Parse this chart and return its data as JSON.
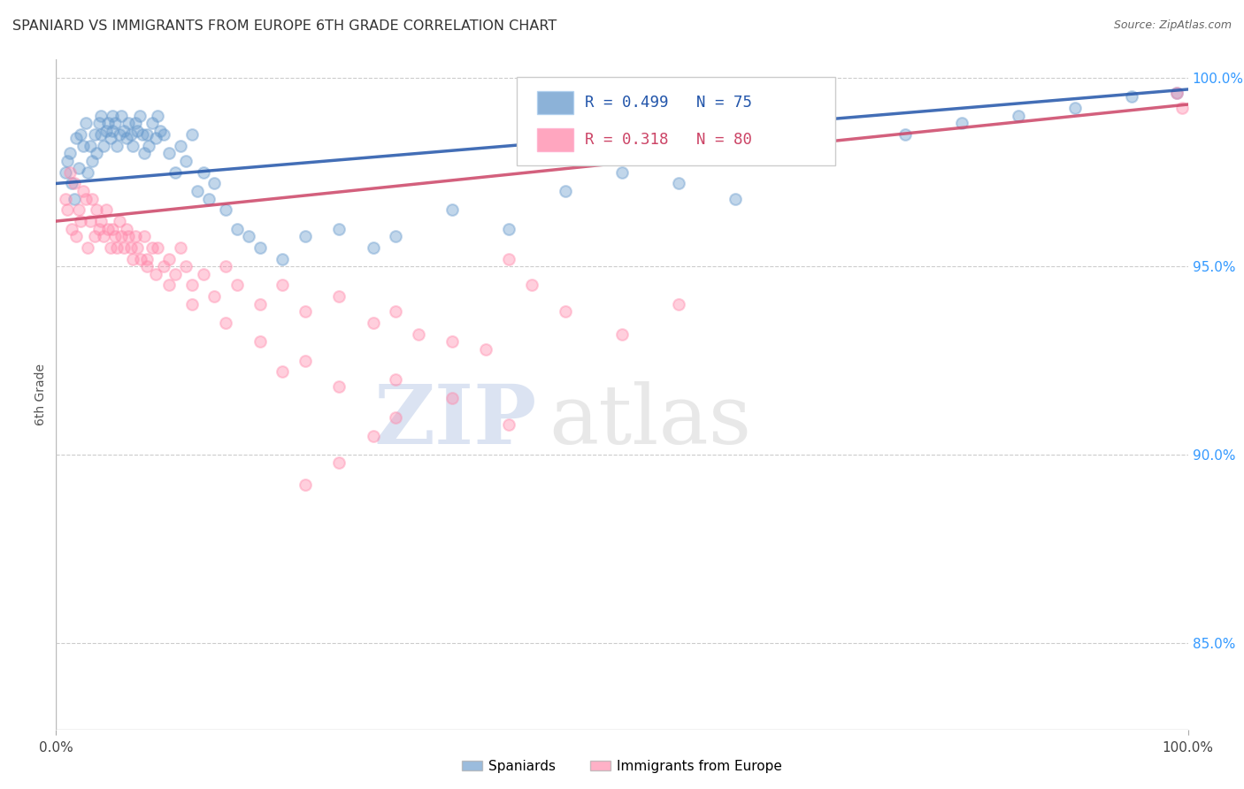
{
  "title": "SPANIARD VS IMMIGRANTS FROM EUROPE 6TH GRADE CORRELATION CHART",
  "source": "Source: ZipAtlas.com",
  "ylabel": "6th Grade",
  "xlim": [
    0.0,
    1.0
  ],
  "ylim": [
    0.827,
    1.005
  ],
  "x_tick_labels": [
    "0.0%",
    "100.0%"
  ],
  "y_tick_labels": [
    "85.0%",
    "90.0%",
    "95.0%",
    "100.0%"
  ],
  "y_tick_values": [
    0.85,
    0.9,
    0.95,
    1.0
  ],
  "legend_blue_label": "Spaniards",
  "legend_pink_label": "Immigrants from Europe",
  "r_blue": 0.499,
  "n_blue": 75,
  "r_pink": 0.318,
  "n_pink": 80,
  "blue_color": "#6699CC",
  "pink_color": "#FF88AA",
  "trend_blue": "#2255AA",
  "trend_pink": "#CC4466",
  "marker_size": 85,
  "marker_alpha": 0.4,
  "spaniards_x": [
    0.008,
    0.01,
    0.012,
    0.014,
    0.016,
    0.018,
    0.02,
    0.022,
    0.024,
    0.026,
    0.028,
    0.03,
    0.032,
    0.034,
    0.036,
    0.038,
    0.04,
    0.04,
    0.042,
    0.044,
    0.046,
    0.048,
    0.05,
    0.05,
    0.052,
    0.054,
    0.056,
    0.058,
    0.06,
    0.062,
    0.064,
    0.066,
    0.068,
    0.07,
    0.072,
    0.074,
    0.076,
    0.078,
    0.08,
    0.082,
    0.085,
    0.088,
    0.09,
    0.092,
    0.095,
    0.1,
    0.105,
    0.11,
    0.115,
    0.12,
    0.125,
    0.13,
    0.135,
    0.14,
    0.15,
    0.16,
    0.17,
    0.18,
    0.2,
    0.22,
    0.25,
    0.28,
    0.3,
    0.35,
    0.4,
    0.45,
    0.5,
    0.55,
    0.6,
    0.75,
    0.8,
    0.85,
    0.9,
    0.95,
    0.99
  ],
  "spaniards_y": [
    0.975,
    0.978,
    0.98,
    0.972,
    0.968,
    0.984,
    0.976,
    0.985,
    0.982,
    0.988,
    0.975,
    0.982,
    0.978,
    0.985,
    0.98,
    0.988,
    0.985,
    0.99,
    0.982,
    0.986,
    0.988,
    0.984,
    0.99,
    0.986,
    0.988,
    0.982,
    0.985,
    0.99,
    0.986,
    0.984,
    0.988,
    0.985,
    0.982,
    0.988,
    0.986,
    0.99,
    0.985,
    0.98,
    0.985,
    0.982,
    0.988,
    0.984,
    0.99,
    0.986,
    0.985,
    0.98,
    0.975,
    0.982,
    0.978,
    0.985,
    0.97,
    0.975,
    0.968,
    0.972,
    0.965,
    0.96,
    0.958,
    0.955,
    0.952,
    0.958,
    0.96,
    0.955,
    0.958,
    0.965,
    0.96,
    0.97,
    0.975,
    0.972,
    0.968,
    0.985,
    0.988,
    0.99,
    0.992,
    0.995,
    0.996
  ],
  "immigrants_x": [
    0.008,
    0.01,
    0.012,
    0.014,
    0.016,
    0.018,
    0.02,
    0.022,
    0.024,
    0.026,
    0.028,
    0.03,
    0.032,
    0.034,
    0.036,
    0.038,
    0.04,
    0.042,
    0.044,
    0.046,
    0.048,
    0.05,
    0.052,
    0.054,
    0.056,
    0.058,
    0.06,
    0.062,
    0.064,
    0.066,
    0.068,
    0.07,
    0.072,
    0.075,
    0.078,
    0.08,
    0.085,
    0.088,
    0.09,
    0.095,
    0.1,
    0.105,
    0.11,
    0.115,
    0.12,
    0.13,
    0.14,
    0.15,
    0.16,
    0.18,
    0.2,
    0.22,
    0.25,
    0.28,
    0.3,
    0.32,
    0.35,
    0.38,
    0.4,
    0.42,
    0.45,
    0.5,
    0.55,
    0.3,
    0.35,
    0.4,
    0.22,
    0.25,
    0.18,
    0.2,
    0.15,
    0.12,
    0.1,
    0.08,
    0.3,
    0.28,
    0.25,
    0.22,
    0.99,
    0.995
  ],
  "immigrants_y": [
    0.968,
    0.965,
    0.975,
    0.96,
    0.972,
    0.958,
    0.965,
    0.962,
    0.97,
    0.968,
    0.955,
    0.962,
    0.968,
    0.958,
    0.965,
    0.96,
    0.962,
    0.958,
    0.965,
    0.96,
    0.955,
    0.96,
    0.958,
    0.955,
    0.962,
    0.958,
    0.955,
    0.96,
    0.958,
    0.955,
    0.952,
    0.958,
    0.955,
    0.952,
    0.958,
    0.952,
    0.955,
    0.948,
    0.955,
    0.95,
    0.952,
    0.948,
    0.955,
    0.95,
    0.945,
    0.948,
    0.942,
    0.95,
    0.945,
    0.94,
    0.945,
    0.938,
    0.942,
    0.935,
    0.938,
    0.932,
    0.93,
    0.928,
    0.952,
    0.945,
    0.938,
    0.932,
    0.94,
    0.92,
    0.915,
    0.908,
    0.925,
    0.918,
    0.93,
    0.922,
    0.935,
    0.94,
    0.945,
    0.95,
    0.91,
    0.905,
    0.898,
    0.892,
    0.996,
    0.992
  ],
  "watermark_zip": "ZIP",
  "watermark_atlas": "atlas",
  "background_color": "#ffffff",
  "grid_color": "#cccccc"
}
